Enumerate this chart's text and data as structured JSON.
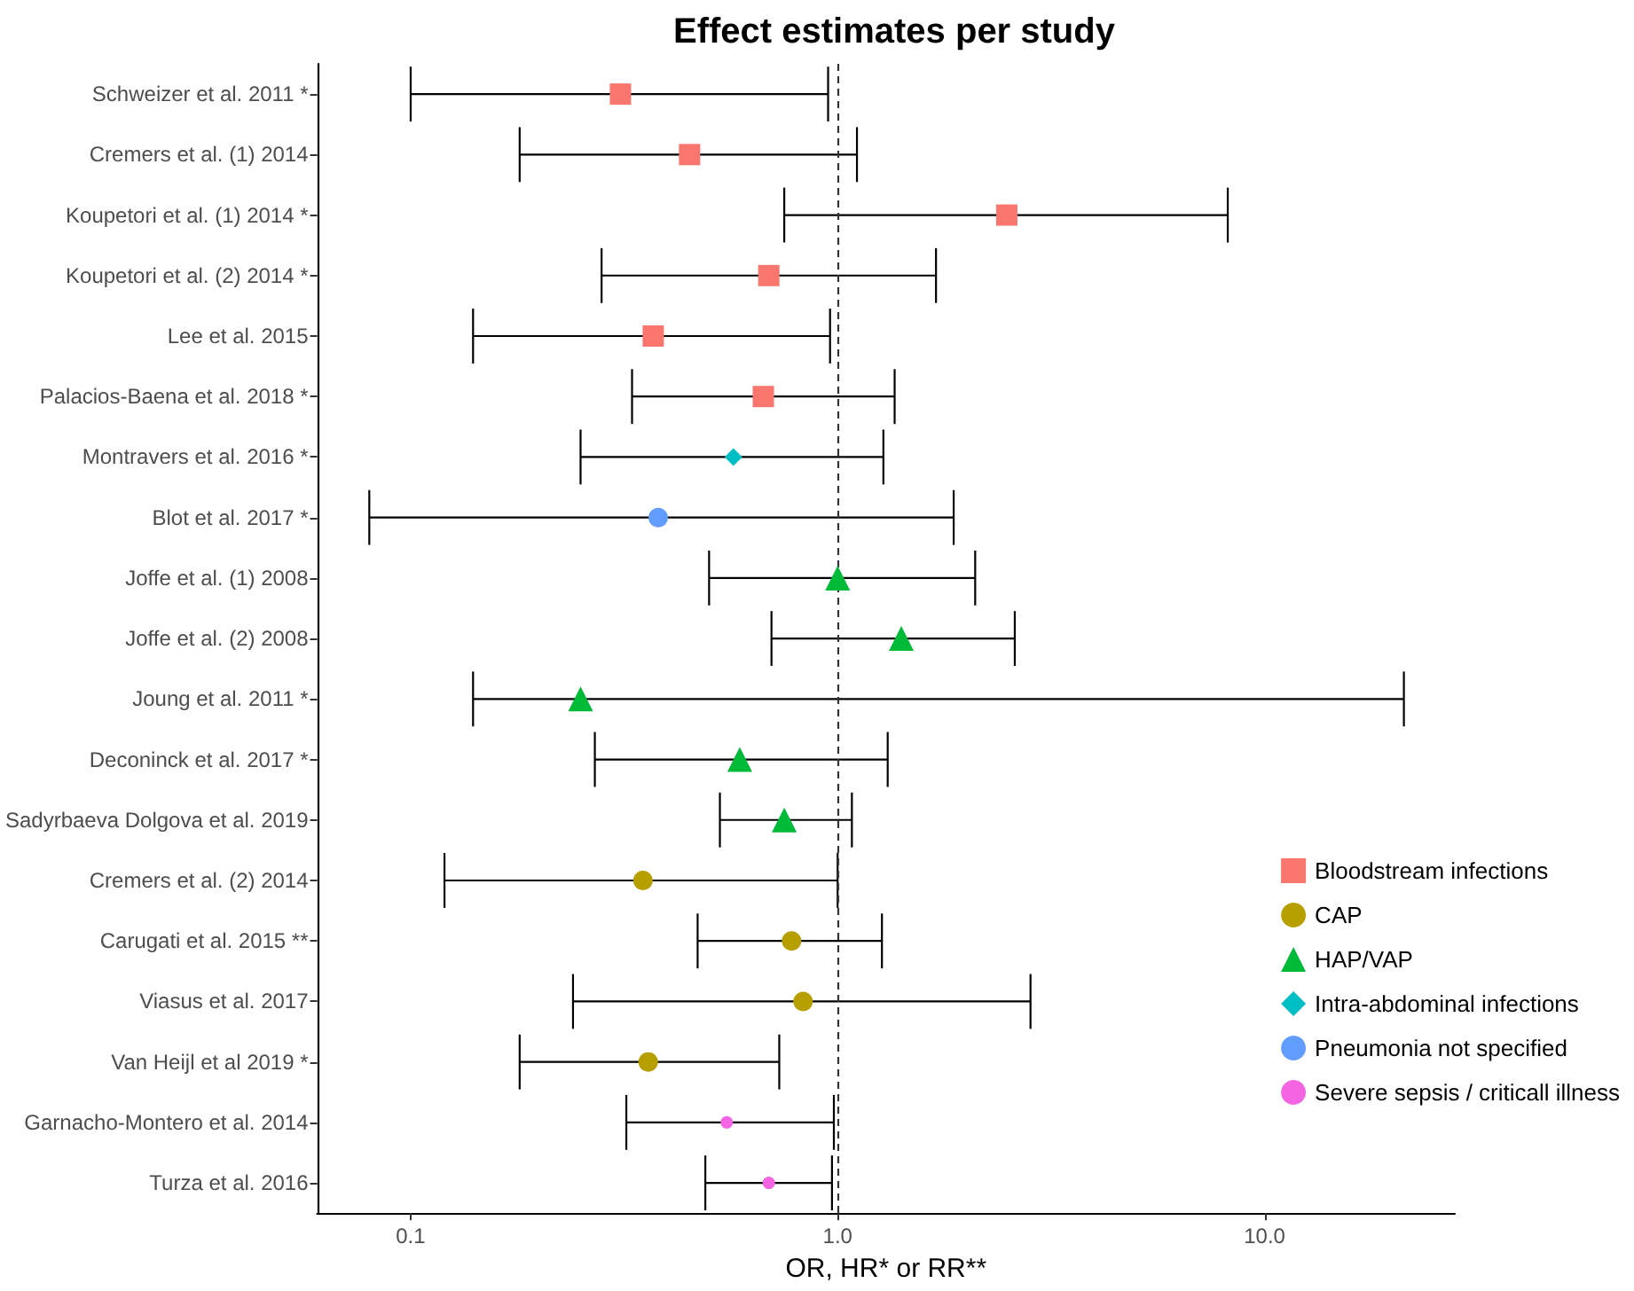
{
  "chart_data": {
    "type": "scatter",
    "orientation": "horizontal",
    "title": "Effect estimates per study",
    "xlabel": "OR, HR* or RR**",
    "categories": [
      "Schweizer et al. 2011 *",
      "Cremers et al. (1) 2014",
      "Koupetori et al. (1) 2014 *",
      "Koupetori et al. (2) 2014 *",
      "Lee et al. 2015",
      "Palacios-Baena et al. 2018 *",
      "Montravers et al. 2016 *",
      "Blot et al. 2017 *",
      "Joffe et al. (1) 2008",
      "Joffe et al. (2) 2008",
      "Joung et al. 2011 *",
      "Deconinck et al. 2017 *",
      "Sadyrbaeva Dolgova et al. 2019",
      "Cremers et al. (2) 2014",
      "Carugati et al. 2015 **",
      "Viasus et al. 2017",
      "Van Heijl et al 2019 *",
      "Garnacho-Montero et al. 2014",
      "Turza et al. 2016"
    ],
    "series": [
      {
        "name": "Bloodstream infections",
        "color": "#f8766d",
        "marker": "square",
        "values": [
          0.31,
          0.45,
          2.49,
          0.69,
          0.37,
          0.67,
          null,
          null,
          null,
          null,
          null,
          null,
          null,
          null,
          null,
          null,
          null,
          null,
          null
        ],
        "errors": [
          [
            0.1,
            0.95
          ],
          [
            0.18,
            1.11
          ],
          [
            0.75,
            8.2
          ],
          [
            0.28,
            1.7
          ],
          [
            0.14,
            0.96
          ],
          [
            0.33,
            1.36
          ],
          null,
          null,
          null,
          null,
          null,
          null,
          null,
          null,
          null,
          null,
          null,
          null,
          null
        ]
      },
      {
        "name": "CAP",
        "color": "#b79f00",
        "marker": "circle",
        "values": [
          null,
          null,
          null,
          null,
          null,
          null,
          null,
          null,
          null,
          null,
          null,
          null,
          null,
          0.35,
          0.78,
          0.83,
          0.36,
          null,
          null
        ],
        "errors": [
          null,
          null,
          null,
          null,
          null,
          null,
          null,
          null,
          null,
          null,
          null,
          null,
          null,
          [
            0.12,
            1.0
          ],
          [
            0.47,
            1.27
          ],
          [
            0.24,
            2.83
          ],
          [
            0.18,
            0.73
          ],
          null,
          null
        ]
      },
      {
        "name": "HAP/VAP",
        "color": "#00ba38",
        "marker": "triangle",
        "values": [
          null,
          null,
          null,
          null,
          null,
          null,
          null,
          null,
          1.0,
          1.41,
          0.25,
          0.59,
          0.75,
          null,
          null,
          null,
          null,
          null,
          null
        ],
        "errors": [
          null,
          null,
          null,
          null,
          null,
          null,
          null,
          null,
          [
            0.5,
            2.1
          ],
          [
            0.7,
            2.6
          ],
          [
            0.14,
            21.2
          ],
          [
            0.27,
            1.31
          ],
          [
            0.53,
            1.08
          ],
          null,
          null,
          null,
          null,
          null,
          null
        ]
      },
      {
        "name": "Intra-abdominal infections",
        "color": "#00bfc4",
        "marker": "diamond",
        "values": [
          null,
          null,
          null,
          null,
          null,
          null,
          0.57,
          null,
          null,
          null,
          null,
          null,
          null,
          null,
          null,
          null,
          null,
          null,
          null
        ],
        "errors": [
          null,
          null,
          null,
          null,
          null,
          null,
          [
            0.25,
            1.28
          ],
          null,
          null,
          null,
          null,
          null,
          null,
          null,
          null,
          null,
          null,
          null,
          null
        ]
      },
      {
        "name": "Pneumonia not specified",
        "color": "#619cff",
        "marker": "circle",
        "values": [
          null,
          null,
          null,
          null,
          null,
          null,
          null,
          0.38,
          null,
          null,
          null,
          null,
          null,
          null,
          null,
          null,
          null,
          null,
          null
        ],
        "errors": [
          null,
          null,
          null,
          null,
          null,
          null,
          null,
          [
            0.08,
            1.87
          ],
          null,
          null,
          null,
          null,
          null,
          null,
          null,
          null,
          null,
          null,
          null
        ]
      },
      {
        "name": "Severe sepsis / criticall illness",
        "color": "#f564e3",
        "marker": "circle",
        "values": [
          null,
          null,
          null,
          null,
          null,
          null,
          null,
          null,
          null,
          null,
          null,
          null,
          null,
          null,
          null,
          null,
          null,
          0.55,
          0.69
        ],
        "errors": [
          null,
          null,
          null,
          null,
          null,
          null,
          null,
          null,
          null,
          null,
          null,
          null,
          null,
          null,
          null,
          null,
          null,
          [
            0.32,
            0.98
          ],
          [
            0.49,
            0.97
          ]
        ]
      }
    ],
    "log": "x",
    "xlim": [
      0.0604,
      27.9
    ],
    "xticks": [
      0.1,
      {
        "value": 1,
        "label": "1.0"
      },
      {
        "value": 10,
        "label": "10.0"
      }
    ],
    "ref_lines": [
      {
        "axis": "x",
        "value": 1,
        "line_style": "dashed"
      }
    ],
    "grid": false,
    "legend": "bottom right"
  }
}
